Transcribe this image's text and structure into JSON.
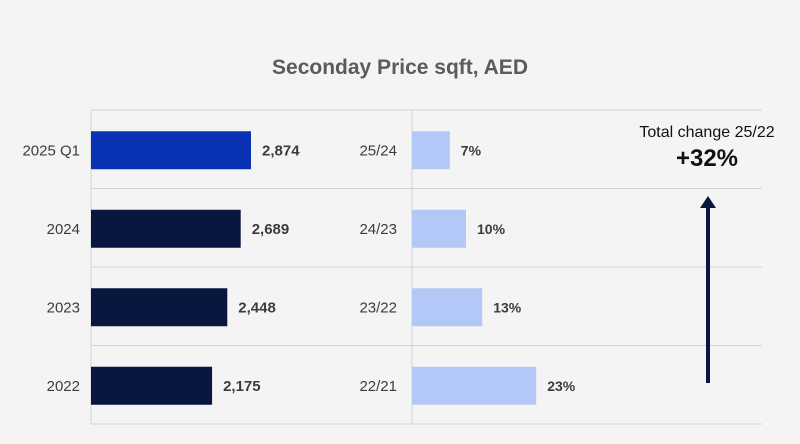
{
  "chart_data": [
    {
      "type": "bar",
      "orientation": "horizontal",
      "title": "Seconday Price sqft, AED",
      "categories": [
        "2025 Q1",
        "2024",
        "2023",
        "2022"
      ],
      "values": [
        2874,
        2689,
        2448,
        2175
      ],
      "value_labels": [
        "2,874",
        "2,689",
        "2,448",
        "2,175"
      ],
      "xlim": [
        0,
        3500
      ],
      "grid": true,
      "colors": {
        "highlight": "#0a32b4",
        "default": "#081640"
      }
    },
    {
      "type": "bar",
      "orientation": "horizontal",
      "categories": [
        "25/24",
        "24/23",
        "23/22",
        "22/21"
      ],
      "values": [
        7,
        10,
        13,
        23
      ],
      "value_labels": [
        "7%",
        "10%",
        "13%",
        "23%"
      ],
      "xlim": [
        0,
        50
      ],
      "colors": {
        "default": "#b3c8f6"
      }
    }
  ],
  "annotation": {
    "label": "Total change 25/22",
    "value": "+32%",
    "arrow": "up",
    "arrow_color": "#081640"
  },
  "colors": {
    "background": "#f4f4f5",
    "grid": "#d3d3d3",
    "text": "#3c3c3c"
  }
}
